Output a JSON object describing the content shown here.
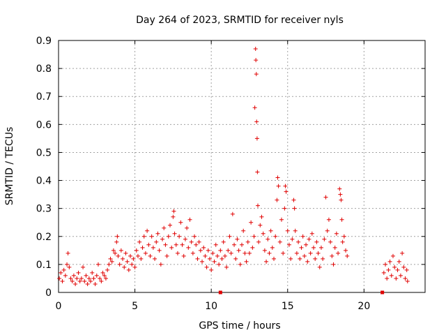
{
  "chart_data": {
    "type": "scatter",
    "title": "Day 264 of 2023, SRMTID for receiver nyls",
    "xlabel": "GPS time / hours",
    "ylabel": "SRMTID / TECUs",
    "xlim": [
      0,
      24
    ],
    "ylim": [
      0,
      0.9
    ],
    "x_ticks": [
      0,
      5,
      10,
      15,
      20
    ],
    "x_tick_labels": [
      "0",
      "5",
      "10",
      "15",
      "20"
    ],
    "y_ticks": [
      0,
      0.1,
      0.2,
      0.3,
      0.4,
      0.5,
      0.6,
      0.7,
      0.8,
      0.9
    ],
    "y_tick_labels": [
      "0",
      "0.1",
      "0.2",
      "0.3",
      "0.4",
      "0.5",
      "0.6",
      "0.7",
      "0.8",
      "0.9"
    ],
    "grid": true,
    "marker": "+",
    "color": "#e00000",
    "series": [
      {
        "name": "SRMTID",
        "points": [
          [
            0.05,
            0.05
          ],
          [
            0.15,
            0.07
          ],
          [
            0.25,
            0.04
          ],
          [
            0.35,
            0.08
          ],
          [
            0.45,
            0.06
          ],
          [
            0.55,
            0.1
          ],
          [
            0.62,
            0.14
          ],
          [
            0.7,
            0.09
          ],
          [
            0.8,
            0.05
          ],
          [
            0.9,
            0.04
          ],
          [
            1.0,
            0.06
          ],
          [
            1.1,
            0.03
          ],
          [
            1.2,
            0.05
          ],
          [
            1.3,
            0.07
          ],
          [
            1.4,
            0.04
          ],
          [
            1.5,
            0.05
          ],
          [
            1.6,
            0.09
          ],
          [
            1.7,
            0.04
          ],
          [
            1.8,
            0.06
          ],
          [
            1.9,
            0.03
          ],
          [
            2.0,
            0.05
          ],
          [
            2.1,
            0.04
          ],
          [
            2.2,
            0.07
          ],
          [
            2.3,
            0.05
          ],
          [
            2.4,
            0.03
          ],
          [
            2.5,
            0.06
          ],
          [
            2.6,
            0.1
          ],
          [
            2.7,
            0.05
          ],
          [
            2.8,
            0.04
          ],
          [
            2.9,
            0.07
          ],
          [
            3.0,
            0.06
          ],
          [
            3.1,
            0.05
          ],
          [
            3.2,
            0.08
          ],
          [
            3.3,
            0.1
          ],
          [
            3.4,
            0.12
          ],
          [
            3.5,
            0.11
          ],
          [
            3.6,
            0.15
          ],
          [
            3.7,
            0.14
          ],
          [
            3.8,
            0.18
          ],
          [
            3.85,
            0.2
          ],
          [
            3.9,
            0.13
          ],
          [
            4.0,
            0.1
          ],
          [
            4.1,
            0.15
          ],
          [
            4.2,
            0.12
          ],
          [
            4.3,
            0.09
          ],
          [
            4.4,
            0.14
          ],
          [
            4.5,
            0.11
          ],
          [
            4.6,
            0.08
          ],
          [
            4.7,
            0.13
          ],
          [
            4.8,
            0.1
          ],
          [
            4.9,
            0.12
          ],
          [
            5.0,
            0.09
          ],
          [
            5.1,
            0.15
          ],
          [
            5.2,
            0.13
          ],
          [
            5.3,
            0.18
          ],
          [
            5.4,
            0.12
          ],
          [
            5.5,
            0.16
          ],
          [
            5.6,
            0.2
          ],
          [
            5.7,
            0.14
          ],
          [
            5.8,
            0.22
          ],
          [
            5.9,
            0.17
          ],
          [
            6.0,
            0.13
          ],
          [
            6.1,
            0.2
          ],
          [
            6.2,
            0.16
          ],
          [
            6.3,
            0.12
          ],
          [
            6.4,
            0.18
          ],
          [
            6.5,
            0.21
          ],
          [
            6.6,
            0.15
          ],
          [
            6.7,
            0.1
          ],
          [
            6.8,
            0.19
          ],
          [
            6.9,
            0.23
          ],
          [
            7.0,
            0.17
          ],
          [
            7.1,
            0.13
          ],
          [
            7.2,
            0.2
          ],
          [
            7.3,
            0.24
          ],
          [
            7.4,
            0.16
          ],
          [
            7.5,
            0.27
          ],
          [
            7.55,
            0.29
          ],
          [
            7.6,
            0.21
          ],
          [
            7.7,
            0.17
          ],
          [
            7.8,
            0.14
          ],
          [
            7.9,
            0.2
          ],
          [
            8.0,
            0.25
          ],
          [
            8.1,
            0.17
          ],
          [
            8.2,
            0.13
          ],
          [
            8.3,
            0.19
          ],
          [
            8.4,
            0.23
          ],
          [
            8.5,
            0.16
          ],
          [
            8.6,
            0.26
          ],
          [
            8.7,
            0.18
          ],
          [
            8.8,
            0.14
          ],
          [
            8.9,
            0.2
          ],
          [
            9.0,
            0.17
          ],
          [
            9.1,
            0.12
          ],
          [
            9.2,
            0.18
          ],
          [
            9.3,
            0.15
          ],
          [
            9.4,
            0.11
          ],
          [
            9.5,
            0.16
          ],
          [
            9.6,
            0.13
          ],
          [
            9.7,
            0.09
          ],
          [
            9.8,
            0.15
          ],
          [
            9.9,
            0.12
          ],
          [
            10.0,
            0.08
          ],
          [
            10.1,
            0.14
          ],
          [
            10.2,
            0.11
          ],
          [
            10.3,
            0.17
          ],
          [
            10.4,
            0.13
          ],
          [
            10.5,
            0.1
          ],
          [
            10.6,
            0.15
          ],
          [
            10.7,
            0.12
          ],
          [
            10.8,
            0.18
          ],
          [
            10.9,
            0.13
          ],
          [
            11.0,
            0.09
          ],
          [
            11.1,
            0.15
          ],
          [
            11.2,
            0.2
          ],
          [
            11.3,
            0.14
          ],
          [
            11.4,
            0.28
          ],
          [
            11.5,
            0.17
          ],
          [
            11.6,
            0.12
          ],
          [
            11.7,
            0.19
          ],
          [
            11.8,
            0.15
          ],
          [
            11.9,
            0.1
          ],
          [
            12.0,
            0.17
          ],
          [
            12.1,
            0.22
          ],
          [
            12.2,
            0.14
          ],
          [
            12.3,
            0.11
          ],
          [
            12.4,
            0.18
          ],
          [
            12.5,
            0.14
          ],
          [
            12.6,
            0.25
          ],
          [
            12.7,
            0.16
          ],
          [
            12.8,
            0.2
          ],
          [
            12.85,
            0.66
          ],
          [
            12.9,
            0.87
          ],
          [
            12.92,
            0.83
          ],
          [
            12.95,
            0.78
          ],
          [
            12.97,
            0.61
          ],
          [
            13.0,
            0.55
          ],
          [
            13.02,
            0.43
          ],
          [
            13.05,
            0.31
          ],
          [
            13.1,
            0.18
          ],
          [
            13.2,
            0.24
          ],
          [
            13.3,
            0.27
          ],
          [
            13.4,
            0.21
          ],
          [
            13.5,
            0.15
          ],
          [
            13.6,
            0.11
          ],
          [
            13.7,
            0.19
          ],
          [
            13.8,
            0.14
          ],
          [
            13.9,
            0.22
          ],
          [
            14.0,
            0.16
          ],
          [
            14.1,
            0.12
          ],
          [
            14.2,
            0.2
          ],
          [
            14.3,
            0.33
          ],
          [
            14.35,
            0.41
          ],
          [
            14.4,
            0.38
          ],
          [
            14.5,
            0.18
          ],
          [
            14.6,
            0.26
          ],
          [
            14.7,
            0.14
          ],
          [
            14.8,
            0.3
          ],
          [
            14.85,
            0.38
          ],
          [
            14.9,
            0.36
          ],
          [
            15.0,
            0.22
          ],
          [
            15.1,
            0.17
          ],
          [
            15.2,
            0.12
          ],
          [
            15.3,
            0.19
          ],
          [
            15.4,
            0.33
          ],
          [
            15.45,
            0.3
          ],
          [
            15.5,
            0.22
          ],
          [
            15.6,
            0.14
          ],
          [
            15.7,
            0.18
          ],
          [
            15.8,
            0.12
          ],
          [
            15.9,
            0.16
          ],
          [
            16.0,
            0.2
          ],
          [
            16.1,
            0.13
          ],
          [
            16.2,
            0.17
          ],
          [
            16.3,
            0.11
          ],
          [
            16.4,
            0.19
          ],
          [
            16.5,
            0.14
          ],
          [
            16.6,
            0.21
          ],
          [
            16.7,
            0.16
          ],
          [
            16.8,
            0.12
          ],
          [
            16.9,
            0.18
          ],
          [
            17.0,
            0.14
          ],
          [
            17.1,
            0.09
          ],
          [
            17.2,
            0.16
          ],
          [
            17.3,
            0.12
          ],
          [
            17.4,
            0.19
          ],
          [
            17.5,
            0.34
          ],
          [
            17.6,
            0.22
          ],
          [
            17.7,
            0.26
          ],
          [
            17.8,
            0.18
          ],
          [
            17.9,
            0.13
          ],
          [
            18.0,
            0.1
          ],
          [
            18.1,
            0.16
          ],
          [
            18.2,
            0.21
          ],
          [
            18.3,
            0.14
          ],
          [
            18.4,
            0.37
          ],
          [
            18.45,
            0.35
          ],
          [
            18.5,
            0.33
          ],
          [
            18.55,
            0.26
          ],
          [
            18.6,
            0.18
          ],
          [
            18.7,
            0.2
          ],
          [
            18.8,
            0.15
          ],
          [
            18.9,
            0.13
          ],
          [
            21.3,
            0.07
          ],
          [
            21.4,
            0.1
          ],
          [
            21.5,
            0.05
          ],
          [
            21.6,
            0.08
          ],
          [
            21.7,
            0.11
          ],
          [
            21.8,
            0.06
          ],
          [
            21.9,
            0.13
          ],
          [
            22.0,
            0.09
          ],
          [
            22.1,
            0.05
          ],
          [
            22.2,
            0.08
          ],
          [
            22.3,
            0.11
          ],
          [
            22.4,
            0.06
          ],
          [
            22.5,
            0.14
          ],
          [
            22.6,
            0.09
          ],
          [
            22.7,
            0.05
          ],
          [
            22.8,
            0.08
          ],
          [
            22.85,
            0.04
          ]
        ]
      }
    ],
    "gap_markers": [
      [
        10.6,
        0
      ],
      [
        21.2,
        0
      ]
    ]
  }
}
